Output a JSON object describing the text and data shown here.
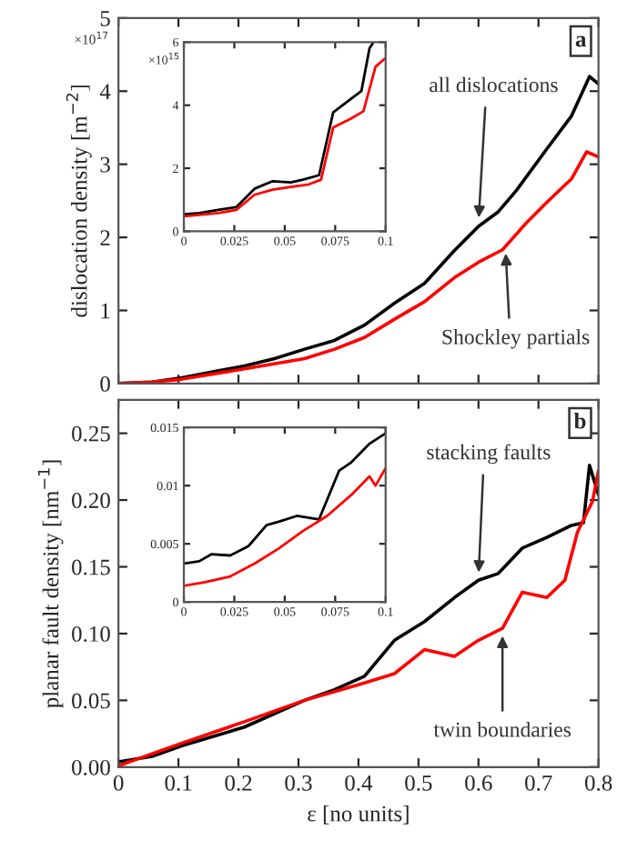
{
  "chart_data": [
    {
      "type": "line",
      "ylabel": "dislocation density [m$^{−2}$]",
      "xlim": [
        0,
        0.8
      ],
      "ylim": [
        0,
        5
      ],
      "xticks": [
        0,
        0.1,
        0.2,
        0.3,
        0.4,
        0.5,
        0.6,
        0.7,
        0.8
      ],
      "yticks": [
        0,
        1,
        2,
        3,
        4,
        5
      ],
      "tick_labels": "y",
      "grid": false,
      "legend": false,
      "annotations": [
        "×10$^{17}$",
        "a",
        {
          "text": "all dislocations",
          "x": 0.6,
          "y": 2.2
        },
        {
          "text": "Shockley partials",
          "x": 0.645,
          "y": 1.85
        }
      ],
      "series": [
        {
          "color": "#000000",
          "x": [
            0,
            0.056,
            0.106,
            0.157,
            0.21,
            0.26,
            0.31,
            0.36,
            0.41,
            0.46,
            0.51,
            0.56,
            0.6,
            0.633,
            0.663,
            0.714,
            0.755,
            0.785,
            0.8
          ],
          "values": [
            0,
            0.02,
            0.08,
            0.16,
            0.24,
            0.34,
            0.47,
            0.59,
            0.8,
            1.1,
            1.37,
            1.82,
            2.15,
            2.35,
            2.64,
            3.21,
            3.66,
            4.2,
            4.1
          ]
        },
        {
          "color": "#ff0000",
          "x": [
            0,
            0.056,
            0.106,
            0.21,
            0.31,
            0.36,
            0.41,
            0.46,
            0.51,
            0.56,
            0.6,
            0.64,
            0.68,
            0.714,
            0.755,
            0.78,
            0.8
          ],
          "values": [
            0,
            0.02,
            0.06,
            0.2,
            0.34,
            0.47,
            0.63,
            0.88,
            1.12,
            1.45,
            1.66,
            1.83,
            2.2,
            2.48,
            2.8,
            3.17,
            3.1
          ]
        }
      ]
    },
    {
      "type": "line",
      "xlim": [
        0,
        0.1
      ],
      "ylim": [
        0,
        6
      ],
      "xticks": [
        0,
        0.025,
        0.05,
        0.075,
        0.1
      ],
      "yticks": [
        0,
        2,
        4,
        6
      ],
      "grid": false,
      "legend": false,
      "annotations": [
        "×10$^{15}$"
      ],
      "series": [
        {
          "color": "#000000",
          "x": [
            0,
            0.0076,
            0.017,
            0.026,
            0.035,
            0.044,
            0.053,
            0.059,
            0.067,
            0.074,
            0.082,
            0.088,
            0.092,
            0.094
          ],
          "values": [
            0.54,
            0.58,
            0.68,
            0.77,
            1.35,
            1.59,
            1.55,
            1.64,
            1.78,
            3.77,
            4.16,
            4.45,
            5.8,
            6.0
          ]
        },
        {
          "color": "#ff0000",
          "x": [
            0,
            0.017,
            0.026,
            0.035,
            0.044,
            0.053,
            0.062,
            0.068,
            0.074,
            0.083,
            0.089,
            0.095,
            0.1
          ],
          "values": [
            0.48,
            0.58,
            0.68,
            1.16,
            1.32,
            1.41,
            1.49,
            1.64,
            3.29,
            3.58,
            3.81,
            5.22,
            5.5
          ]
        }
      ]
    },
    {
      "type": "line",
      "xlabel": "ε [no units]",
      "ylabel": "planar fault density [nm$^{−1}$]",
      "xlim": [
        0,
        0.8
      ],
      "ylim": [
        0,
        0.275
      ],
      "xticks": [
        0,
        0.1,
        0.2,
        0.3,
        0.4,
        0.5,
        0.6,
        0.7,
        0.8
      ],
      "yticks": [
        {
          "value": 0,
          "label": "0.00"
        },
        {
          "value": 0.05,
          "label": "0.05"
        },
        {
          "value": 0.1,
          "label": "0.10"
        },
        {
          "value": 0.15,
          "label": "0.15"
        },
        {
          "value": 0.2,
          "label": "0.20"
        },
        0.25
      ],
      "grid": false,
      "legend": false,
      "annotations": [
        "b",
        {
          "text": "stacking faults",
          "x": 0.6,
          "y": 0.142
        },
        {
          "text": "twin boundaries",
          "x": 0.64,
          "y": 0.102
        }
      ],
      "series": [
        {
          "color": "#000000",
          "x": [
            0,
            0.056,
            0.106,
            0.21,
            0.31,
            0.36,
            0.41,
            0.46,
            0.51,
            0.56,
            0.6,
            0.633,
            0.673,
            0.714,
            0.755,
            0.775,
            0.785,
            0.8
          ],
          "values": [
            0.004,
            0.008,
            0.016,
            0.03,
            0.05,
            0.058,
            0.068,
            0.095,
            0.109,
            0.127,
            0.14,
            0.145,
            0.164,
            0.172,
            0.181,
            0.183,
            0.226,
            0.204
          ]
        },
        {
          "color": "#ff0000",
          "x": [
            0,
            0.106,
            0.21,
            0.31,
            0.41,
            0.46,
            0.51,
            0.56,
            0.6,
            0.64,
            0.673,
            0.714,
            0.744,
            0.765,
            0.79,
            0.8
          ],
          "values": [
            0.001,
            0.018,
            0.034,
            0.05,
            0.063,
            0.07,
            0.088,
            0.083,
            0.095,
            0.104,
            0.131,
            0.127,
            0.14,
            0.176,
            0.199,
            0.222
          ]
        }
      ]
    },
    {
      "type": "line",
      "xlim": [
        0,
        0.1
      ],
      "ylim": [
        0,
        0.015
      ],
      "xticks": [
        0,
        0.025,
        0.05,
        0.075,
        0.1
      ],
      "yticks": [
        0,
        0.005,
        0.01,
        0.015
      ],
      "grid": false,
      "legend": false,
      "series": [
        {
          "color": "#000000",
          "x": [
            0,
            0.0076,
            0.0136,
            0.023,
            0.032,
            0.041,
            0.047,
            0.056,
            0.067,
            0.077,
            0.083,
            0.092,
            0.1
          ],
          "values": [
            0.0033,
            0.0035,
            0.0041,
            0.004,
            0.0048,
            0.0066,
            0.0069,
            0.0074,
            0.0071,
            0.0113,
            0.012,
            0.0136,
            0.0145
          ]
        },
        {
          "color": "#ff0000",
          "x": [
            0,
            0.0106,
            0.023,
            0.035,
            0.047,
            0.059,
            0.071,
            0.083,
            0.092,
            0.095,
            0.1
          ],
          "values": [
            0.0014,
            0.0017,
            0.0022,
            0.0033,
            0.0046,
            0.0061,
            0.0074,
            0.0092,
            0.0108,
            0.01,
            0.0115
          ]
        }
      ]
    }
  ]
}
